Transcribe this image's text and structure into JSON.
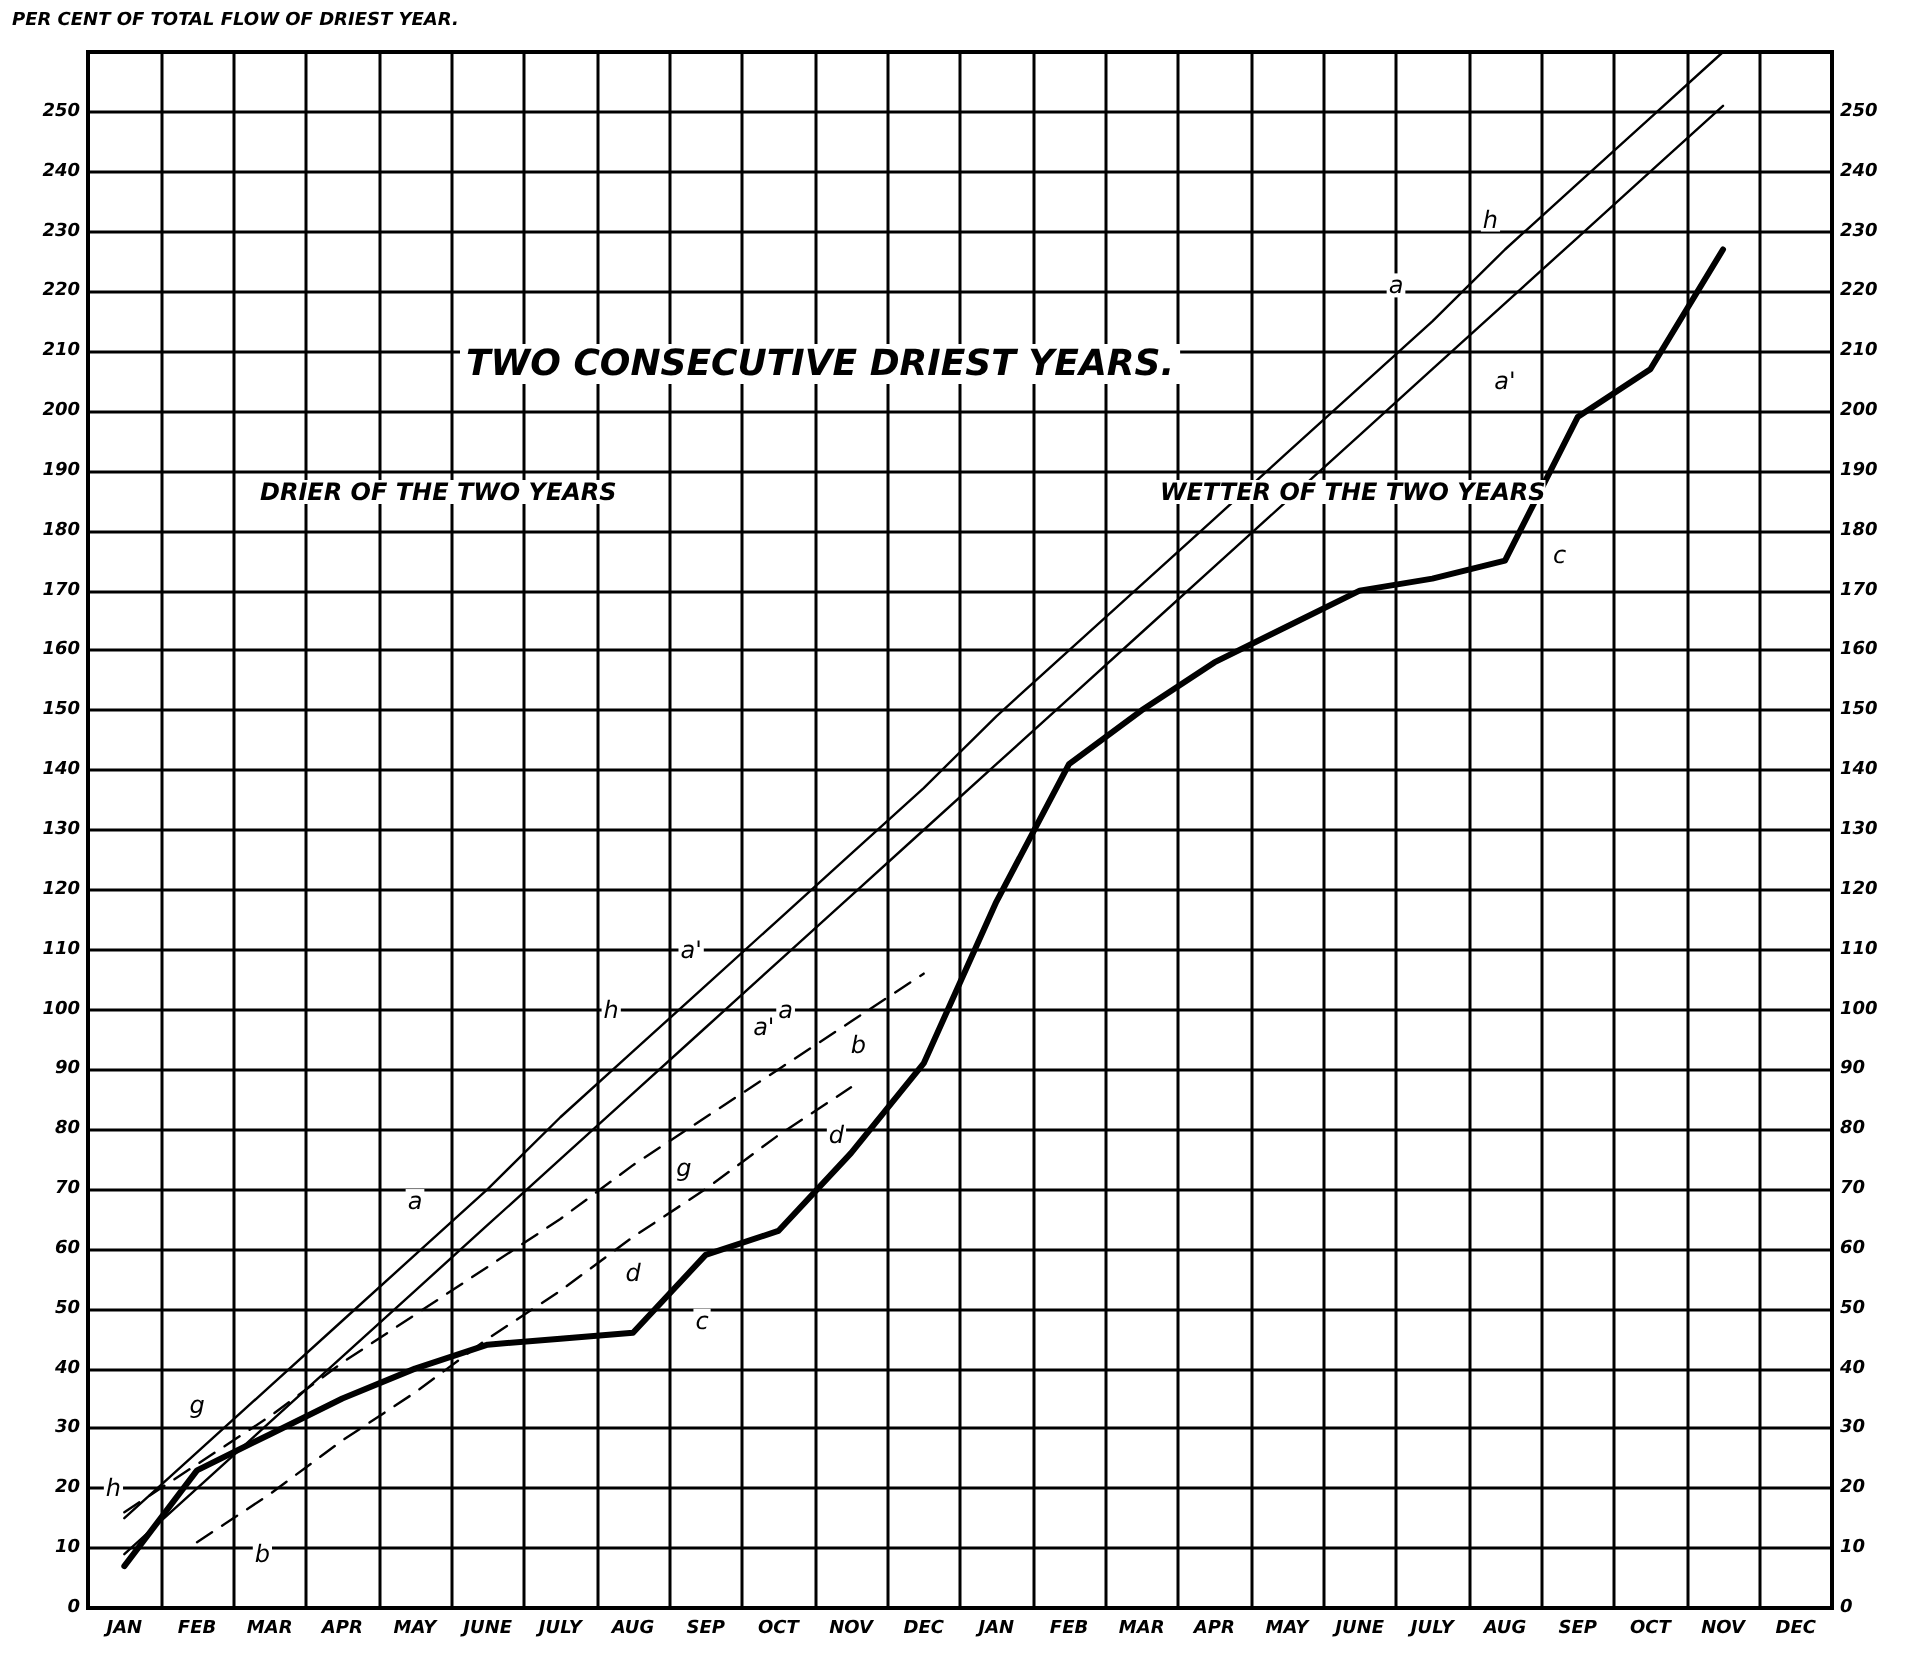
{
  "chart_data": {
    "type": "line",
    "title": "TWO CONSECUTIVE DRIEST YEARS.",
    "ylabel": "PER CENT OF TOTAL FLOW OF DRIEST YEAR.",
    "annotations": [
      "DRIER OF THE TWO YEARS",
      "WETTER OF THE TWO YEARS",
      "a",
      "a'",
      "h",
      "c",
      "a'",
      "a'",
      "h",
      "a",
      "b",
      "d",
      "g",
      "d",
      "c",
      "a",
      "g",
      "h",
      "b"
    ],
    "categories": [
      "JAN",
      "FEB",
      "MAR",
      "APR",
      "MAY",
      "JUNE",
      "JULY",
      "AUG",
      "SEP",
      "OCT",
      "NOV",
      "DEC",
      "JAN",
      "FEB",
      "MAR",
      "APR",
      "MAY",
      "JUNE",
      "JULY",
      "AUG",
      "SEP",
      "OCT",
      "NOV",
      "DEC"
    ],
    "ylim": [
      0,
      260
    ],
    "yticks": [
      0,
      10,
      20,
      30,
      40,
      50,
      60,
      70,
      80,
      90,
      100,
      110,
      120,
      130,
      140,
      150,
      160,
      170,
      180,
      190,
      200,
      210,
      220,
      230,
      240,
      250
    ],
    "y2lim": [
      0,
      260
    ],
    "y2ticks": [
      0,
      10,
      20,
      30,
      40,
      50,
      60,
      70,
      80,
      90,
      100,
      110,
      120,
      130,
      140,
      150,
      160,
      170,
      180,
      190,
      200,
      210,
      220,
      230,
      240,
      250
    ],
    "grid": true,
    "marker": "none",
    "series": [
      {
        "color": "#000000",
        "line_style": "solid",
        "values": [
          7,
          23,
          29,
          35,
          40,
          44,
          45,
          46,
          59,
          63,
          76,
          91,
          118,
          141,
          150,
          158,
          164,
          170,
          172,
          175,
          199,
          207,
          227,
          null
        ]
      },
      {
        "color": "#000000",
        "line_style": "solid",
        "values": [
          15,
          26,
          37,
          48,
          59,
          70,
          82,
          93,
          104,
          115,
          126,
          137,
          149,
          160,
          171,
          182,
          193,
          204,
          215,
          227,
          238,
          249,
          260,
          null
        ]
      },
      {
        "color": "#000000",
        "line_style": "solid",
        "values": [
          9,
          20,
          31,
          42,
          53,
          64,
          75,
          86,
          97,
          108,
          119,
          130,
          141,
          152,
          163,
          174,
          185,
          196,
          207,
          218,
          229,
          240,
          251,
          null
        ]
      },
      {
        "color": "#000000",
        "line_style": "dashed",
        "values": [
          16,
          24,
          32,
          41,
          49,
          57,
          65,
          74,
          82,
          90,
          98,
          106,
          null,
          null,
          null,
          null,
          null,
          null,
          null,
          null,
          null,
          null,
          null,
          null
        ]
      },
      {
        "color": "#000000",
        "line_style": "dashed",
        "values": [
          null,
          11,
          19,
          28,
          36,
          45,
          53,
          62,
          70,
          79,
          87,
          null,
          null,
          null,
          null,
          null,
          null,
          null,
          null,
          null,
          null,
          null,
          null,
          null
        ]
      }
    ]
  }
}
